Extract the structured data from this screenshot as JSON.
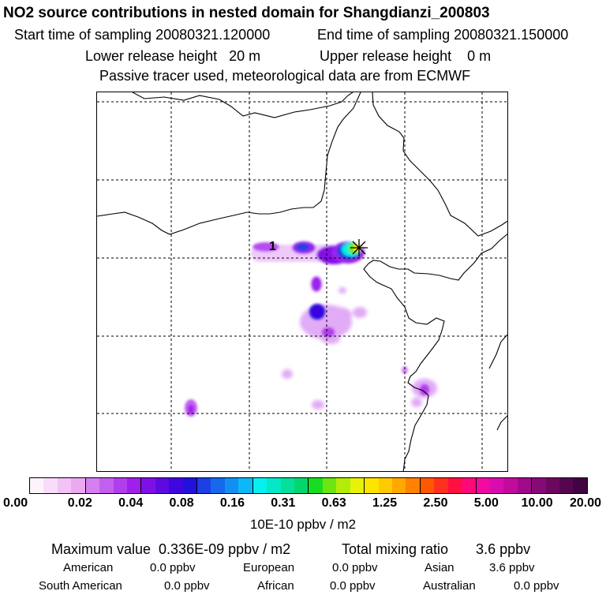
{
  "header": {
    "title": "NO2 source contributions in nested domain for Shangdianzi_200803",
    "start_label": "Start time of sampling 20080321.120000",
    "end_label": "End time of sampling 20080321.150000",
    "lower_height": "Lower release height   20 m",
    "upper_height": "Upper release height    0 m",
    "tracer_note": "Passive tracer used, meteorological data are from ECMWF"
  },
  "map": {
    "marker_label": "1",
    "colors": {
      "coastline": "#000000",
      "grid": "#000000",
      "release_marker": "#000000"
    }
  },
  "colorbar": {
    "ticks": [
      "0.00",
      "0.02",
      "0.04",
      "0.08",
      "0.16",
      "0.31",
      "0.63",
      "1.25",
      "2.50",
      "5.00",
      "10.00",
      "20.00"
    ],
    "colors": [
      "#fdf3fd",
      "#f8dcfa",
      "#f2c2f6",
      "#eba8f3",
      "#d67ff0",
      "#c35fee",
      "#b13dec",
      "#9f20ea",
      "#7e10e6",
      "#5d0ae2",
      "#3f06df",
      "#2210dd",
      "#1c40e4",
      "#1768ea",
      "#1290f0",
      "#0cb8f5",
      "#06f0f0",
      "#04e8c8",
      "#04df9c",
      "#04d66f",
      "#18dc20",
      "#6ee412",
      "#b4ec0a",
      "#e8f206",
      "#ffe400",
      "#ffca00",
      "#ffa800",
      "#ff8200",
      "#ff5800",
      "#ff3020",
      "#ff1040",
      "#ff0878",
      "#f00aa0",
      "#d80cb0",
      "#c00c9c",
      "#a00a88",
      "#860a76",
      "#6c0860",
      "#560650",
      "#400440"
    ],
    "units": "10E-10 ppbv / m2"
  },
  "stats": {
    "max_value": "Maximum value  0.336E-09 ppbv / m2",
    "total_mixing": "Total mixing ratio       3.6 ppbv",
    "regions": [
      {
        "name": "American",
        "value": "0.0 ppbv"
      },
      {
        "name": "European",
        "value": "0.0 ppbv"
      },
      {
        "name": "Asian",
        "value": "3.6 ppbv"
      },
      {
        "name": "South American",
        "value": "0.0 ppbv"
      },
      {
        "name": "African",
        "value": "0.0 ppbv"
      },
      {
        "name": "Australian",
        "value": "0.0 ppbv"
      }
    ]
  }
}
